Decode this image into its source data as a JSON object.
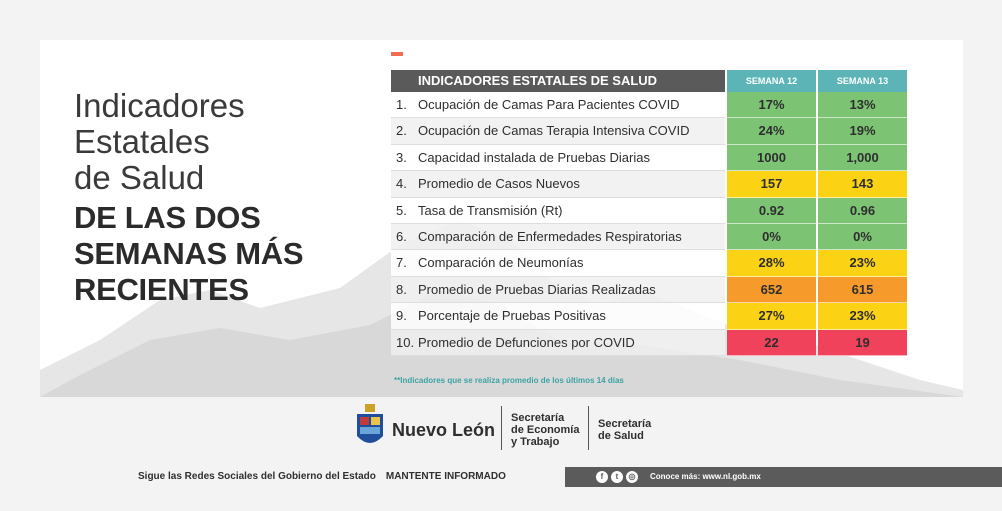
{
  "title": {
    "line1": "Indicadores",
    "line2": "Estatales",
    "line3": "de Salud",
    "bold1": "DE LAS DOS",
    "bold2": "SEMANAS MÁS",
    "bold3": "RECIENTES"
  },
  "table": {
    "header": "INDICADORES ESTATALES DE SALUD",
    "col1": "SEMANA 12",
    "col2": "SEMANA 13",
    "rows": [
      {
        "num": "1.",
        "label": "Ocupación de Camas Para Pacientes COVID",
        "w12": "17%",
        "w13": "13%",
        "c12": "#7dc374",
        "c13": "#7dc374"
      },
      {
        "num": "2.",
        "label": "Ocupación de Camas Terapia Intensiva COVID",
        "w12": "24%",
        "w13": "19%",
        "c12": "#7dc374",
        "c13": "#7dc374"
      },
      {
        "num": "3.",
        "label": "Capacidad instalada de Pruebas Diarias",
        "w12": "1000",
        "w13": "1,000",
        "c12": "#7dc374",
        "c13": "#7dc374"
      },
      {
        "num": "4.",
        "label": "Promedio de Casos Nuevos",
        "w12": "157",
        "w13": "143",
        "c12": "#fbd214",
        "c13": "#fbd214"
      },
      {
        "num": "5.",
        "label": "Tasa de Transmisión (Rt)",
        "w12": "0.92",
        "w13": "0.96",
        "c12": "#7dc374",
        "c13": "#7dc374"
      },
      {
        "num": "6.",
        "label": "Comparación de Enfermedades Respiratorias",
        "w12": "0%",
        "w13": "0%",
        "c12": "#7dc374",
        "c13": "#7dc374"
      },
      {
        "num": "7.",
        "label": "Comparación de Neumonías",
        "w12": "28%",
        "w13": "23%",
        "c12": "#fbd214",
        "c13": "#fbd214"
      },
      {
        "num": "8.",
        "label": "Promedio de Pruebas Diarias Realizadas",
        "w12": "652",
        "w13": "615",
        "c12": "#f79a2c",
        "c13": "#f79a2c"
      },
      {
        "num": "9.",
        "label": "Porcentaje de Pruebas Positivas",
        "w12": "27%",
        "w13": "23%",
        "c12": "#fbd214",
        "c13": "#fbd214"
      },
      {
        "num": "10.",
        "label": "Promedio de Defunciones por COVID",
        "w12": "22",
        "w13": "19",
        "c12": "#f0425a",
        "c13": "#f0425a"
      }
    ],
    "note": "**Indicadores que se realiza promedio de los últimos 14 días"
  },
  "logos": {
    "state": "Nuevo León",
    "sec1_line1": "Secretaría",
    "sec1_line2": "de Economía",
    "sec1_line3": "y Trabajo",
    "sec2_line1": "Secretaría",
    "sec2_line2": "de Salud"
  },
  "footer": {
    "social_text": "Sigue las Redes Sociales del Gobierno del Estado",
    "cta": "MANTENTE INFORMADO",
    "link_text": "Conoce más: www.nl.gob.mx",
    "icons": [
      "facebook-icon",
      "twitter-icon",
      "instagram-icon"
    ]
  },
  "colors": {
    "header_dark": "#5a5a5a",
    "header_teal": "#5db4b7",
    "green": "#7dc374",
    "yellow": "#fbd214",
    "orange": "#f79a2c",
    "red": "#f0425a",
    "accent": "#f26c4f"
  }
}
